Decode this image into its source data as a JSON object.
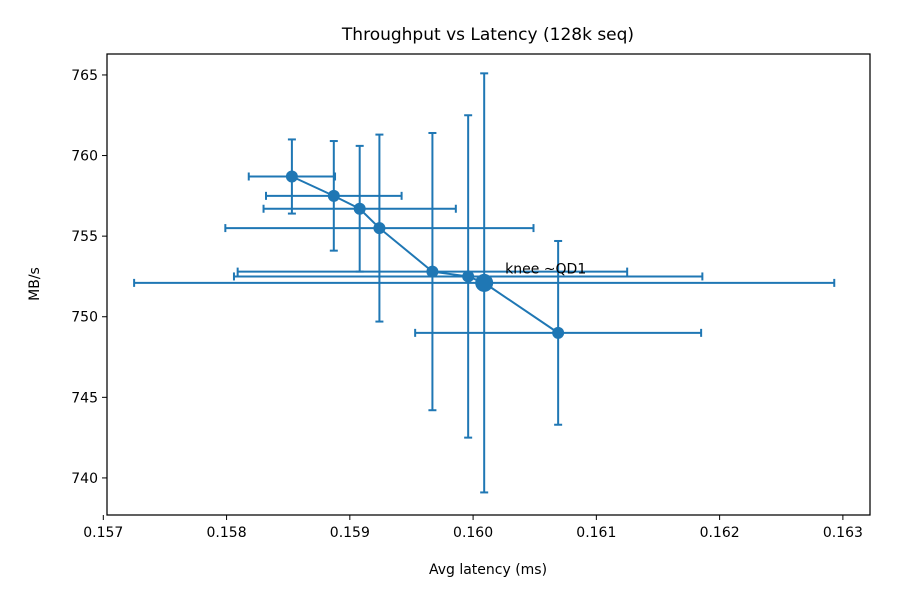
{
  "chart_data": {
    "type": "scatter",
    "title": "Throughput vs Latency (128k seq)",
    "xlabel": "Avg latency (ms)",
    "ylabel": "MB/s",
    "xlim": [
      0.15703,
      0.16322
    ],
    "ylim": [
      737.7,
      766.3
    ],
    "x_ticks": [
      0.157,
      0.158,
      0.159,
      0.16,
      0.161,
      0.162,
      0.163
    ],
    "x_tick_labels": [
      "0.157",
      "0.158",
      "0.159",
      "0.160",
      "0.161",
      "0.162",
      "0.163"
    ],
    "y_ticks": [
      740,
      745,
      750,
      755,
      760,
      765
    ],
    "y_tick_labels": [
      "740",
      "745",
      "750",
      "755",
      "760",
      "765"
    ],
    "grid": false,
    "legend": null,
    "series": [
      {
        "color": "#1f77b4",
        "marker": "circle",
        "line": "solid",
        "points": [
          {
            "x": 0.15853,
            "y": 758.7,
            "xerr": 0.00035,
            "yerr": 2.3
          },
          {
            "x": 0.15887,
            "y": 757.5,
            "xerr": 0.00055,
            "yerr": 3.4
          },
          {
            "x": 0.15908,
            "y": 756.7,
            "xerr": 0.00078,
            "yerr": 3.9
          },
          {
            "x": 0.15924,
            "y": 755.5,
            "xerr": 0.00125,
            "yerr": 5.8
          },
          {
            "x": 0.15967,
            "y": 752.8,
            "xerr": 0.00158,
            "yerr": 8.6
          },
          {
            "x": 0.15996,
            "y": 752.5,
            "xerr": 0.0019,
            "yerr": 10.0
          },
          {
            "x": 0.16009,
            "y": 752.1,
            "xerr": 0.00284,
            "yerr": 13.0
          },
          {
            "x": 0.16069,
            "y": 749.0,
            "xerr": 0.00116,
            "yerr": 5.7
          }
        ]
      }
    ],
    "highlight_point_index": 6,
    "annotation": {
      "text": "knee ~QD1",
      "x": 0.16026,
      "y": 753.0
    }
  }
}
